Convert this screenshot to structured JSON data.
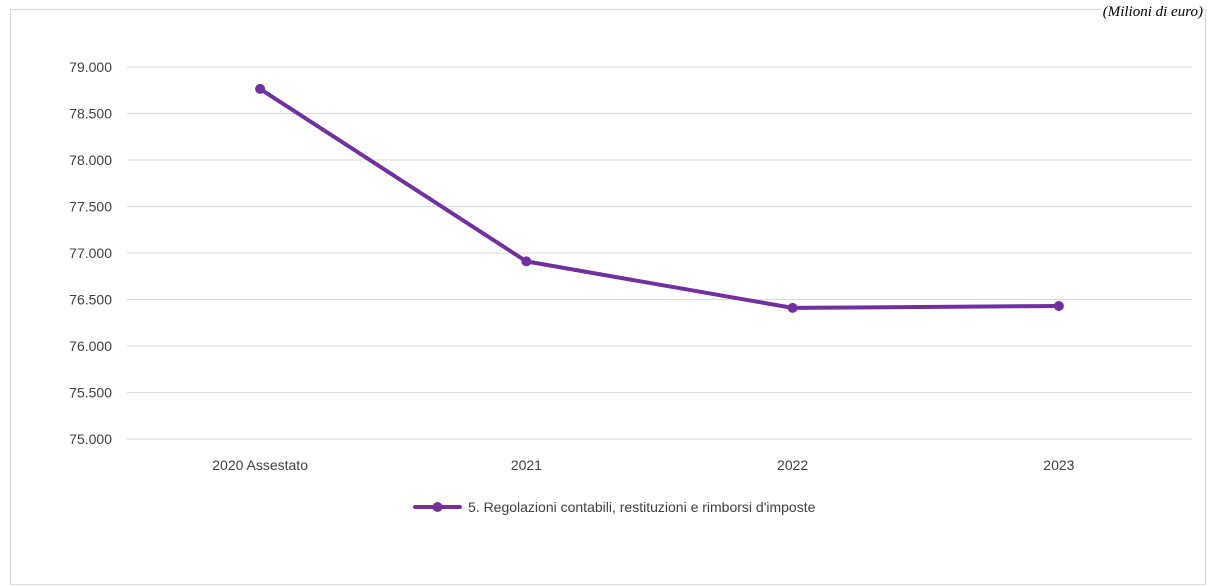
{
  "unit_note": "(Milioni di euro)",
  "colors": {
    "series": "#7030a0",
    "grid": "#d9d9d9",
    "text": "#404040"
  },
  "chart_data": {
    "type": "line",
    "title": "",
    "xlabel": "",
    "ylabel": "",
    "categories": [
      "2020 Assestato",
      "2021",
      "2022",
      "2023"
    ],
    "ylim": [
      75000,
      79000
    ],
    "ytick_step": 500,
    "ytick_labels": [
      "75.000",
      "75.500",
      "76.000",
      "76.500",
      "77.000",
      "77.500",
      "78.000",
      "78.500",
      "79.000"
    ],
    "grid": true,
    "legend_position": "bottom",
    "series": [
      {
        "name": "5. Regolazioni contabili, restituzioni e rimborsi d'imposte",
        "values": [
          78765,
          76910,
          76410,
          76430
        ]
      }
    ]
  }
}
